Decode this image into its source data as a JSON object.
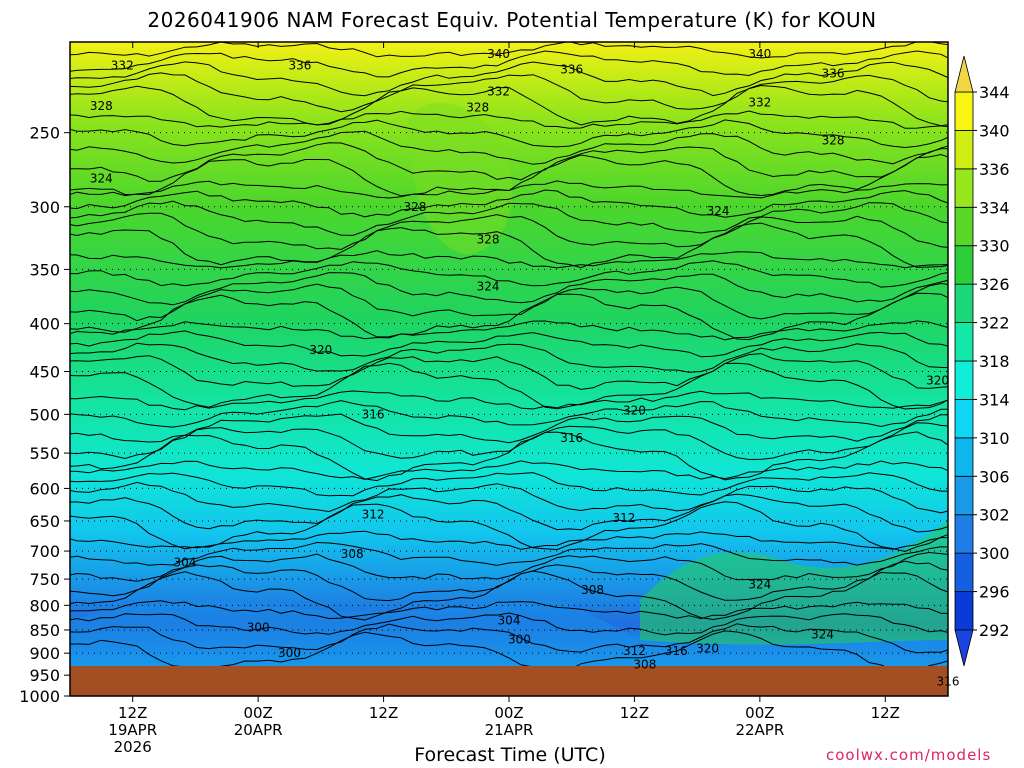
{
  "chart_data": {
    "type": "heatmap",
    "title": "2026041906 NAM Forecast Equiv. Potential Temperature (K) for KOUN",
    "xlabel": "Forecast Time (UTC)",
    "ylabel": "",
    "y_axis": {
      "label": "",
      "scale": "log-pressure",
      "range": [
        1000,
        200
      ],
      "ticks": [
        250,
        300,
        350,
        400,
        450,
        500,
        550,
        600,
        650,
        700,
        750,
        800,
        850,
        900,
        950,
        1000
      ]
    },
    "x_axis": {
      "range": [
        "2026-04-19T06:00Z",
        "2026-04-22T18:00Z"
      ],
      "ticks": [
        {
          "time": "2026-04-19T12:00Z",
          "lines": [
            "12Z",
            "19APR",
            "2026"
          ]
        },
        {
          "time": "2026-04-20T00:00Z",
          "lines": [
            "00Z",
            "20APR"
          ]
        },
        {
          "time": "2026-04-20T12:00Z",
          "lines": [
            "12Z"
          ]
        },
        {
          "time": "2026-04-21T00:00Z",
          "lines": [
            "00Z",
            "21APR"
          ]
        },
        {
          "time": "2026-04-21T12:00Z",
          "lines": [
            "12Z"
          ]
        },
        {
          "time": "2026-04-22T00:00Z",
          "lines": [
            "00Z",
            "22APR"
          ]
        },
        {
          "time": "2026-04-22T12:00Z",
          "lines": [
            "12Z"
          ]
        }
      ]
    },
    "grid": "dotted horizontal",
    "colorbar": {
      "position": "right",
      "units": "K",
      "levels": [
        292,
        296,
        300,
        302,
        306,
        310,
        314,
        318,
        322,
        326,
        330,
        334,
        336,
        340,
        344
      ],
      "colors": [
        "#0a3bd6",
        "#1560e0",
        "#1e7ee6",
        "#1b9ae8",
        "#10b6ee",
        "#0ed8f4",
        "#10eed8",
        "#14e8a8",
        "#1ad878",
        "#2ccf3a",
        "#5ad82a",
        "#96e81c",
        "#cfef14",
        "#f7f514"
      ]
    },
    "contour_labels": [
      {
        "time": "2026-04-19T11:00Z",
        "p": 212,
        "value": 332
      },
      {
        "time": "2026-04-20T04:00Z",
        "p": 212,
        "value": 336
      },
      {
        "time": "2026-04-20T23:00Z",
        "p": 206,
        "value": 340
      },
      {
        "time": "2026-04-21T06:00Z",
        "p": 214,
        "value": 336
      },
      {
        "time": "2026-04-20T23:00Z",
        "p": 226,
        "value": 332
      },
      {
        "time": "2026-04-22T00:00Z",
        "p": 206,
        "value": 340
      },
      {
        "time": "2026-04-22T07:00Z",
        "p": 216,
        "value": 336
      },
      {
        "time": "2026-04-19T09:00Z",
        "p": 234,
        "value": 328
      },
      {
        "time": "2026-04-20T21:00Z",
        "p": 235,
        "value": 328
      },
      {
        "time": "2026-04-22T00:00Z",
        "p": 232,
        "value": 332
      },
      {
        "time": "2026-04-22T07:00Z",
        "p": 255,
        "value": 328
      },
      {
        "time": "2026-04-19T09:00Z",
        "p": 280,
        "value": 324
      },
      {
        "time": "2026-04-20T15:00Z",
        "p": 300,
        "value": 328
      },
      {
        "time": "2026-04-20T22:00Z",
        "p": 325,
        "value": 328
      },
      {
        "time": "2026-04-21T20:00Z",
        "p": 303,
        "value": 324
      },
      {
        "time": "2026-04-20T22:00Z",
        "p": 365,
        "value": 324
      },
      {
        "time": "2026-04-20T06:00Z",
        "p": 427,
        "value": 320
      },
      {
        "time": "2026-04-21T12:00Z",
        "p": 495,
        "value": 320
      },
      {
        "time": "2026-04-22T17:00Z",
        "p": 460,
        "value": 320
      },
      {
        "time": "2026-04-20T11:00Z",
        "p": 500,
        "value": 316
      },
      {
        "time": "2026-04-21T06:00Z",
        "p": 530,
        "value": 316
      },
      {
        "time": "2026-04-20T11:00Z",
        "p": 640,
        "value": 312
      },
      {
        "time": "2026-04-21T11:00Z",
        "p": 645,
        "value": 312
      },
      {
        "time": "2026-04-20T09:00Z",
        "p": 705,
        "value": 308
      },
      {
        "time": "2026-04-21T08:00Z",
        "p": 770,
        "value": 308
      },
      {
        "time": "2026-04-19T17:00Z",
        "p": 720,
        "value": 304
      },
      {
        "time": "2026-04-21T00:00Z",
        "p": 830,
        "value": 304
      },
      {
        "time": "2026-04-20T00:00Z",
        "p": 845,
        "value": 300
      },
      {
        "time": "2026-04-20T03:00Z",
        "p": 900,
        "value": 300
      },
      {
        "time": "2026-04-21T01:00Z",
        "p": 870,
        "value": 300
      },
      {
        "time": "2026-04-21T12:00Z",
        "p": 895,
        "value": 312
      },
      {
        "time": "2026-04-21T13:00Z",
        "p": 925,
        "value": 308
      },
      {
        "time": "2026-04-21T16:00Z",
        "p": 895,
        "value": 316
      },
      {
        "time": "2026-04-21T19:00Z",
        "p": 890,
        "value": 320
      },
      {
        "time": "2026-04-22T00:00Z",
        "p": 760,
        "value": 324
      },
      {
        "time": "2026-04-22T06:00Z",
        "p": 860,
        "value": 324
      },
      {
        "time": "2026-04-22T18:00Z",
        "p": 965,
        "value": 316
      }
    ],
    "description_note": ""
  },
  "credit": "coolwx.com/models"
}
